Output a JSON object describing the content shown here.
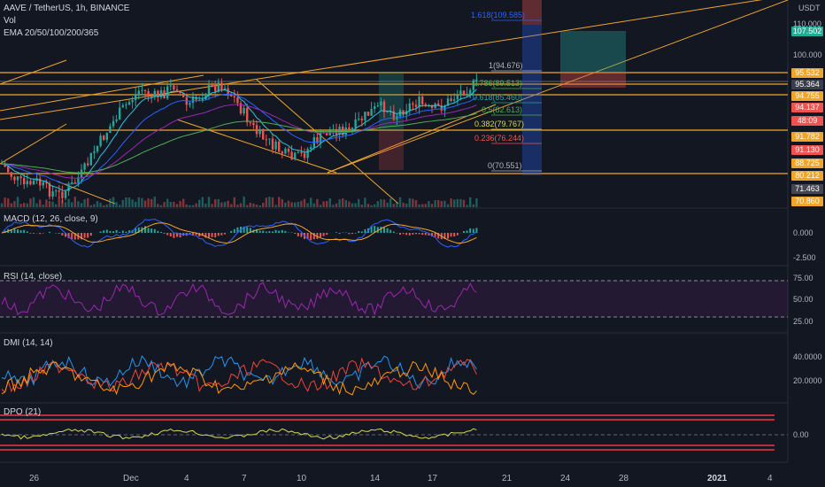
{
  "header": {
    "title": "AAVE / TetherUS, 1h, BINANCE",
    "vol": "Vol",
    "ema": "EMA 20/50/100/200/365",
    "currency": "USDT"
  },
  "price_axis_labels": [
    "110.000",
    "100.000"
  ],
  "price_tags": [
    {
      "text": "107.502",
      "color": "#22ab94"
    },
    {
      "text": "95.532",
      "color": "#f0a52a"
    },
    {
      "text": "95.364",
      "color": "#3a3e4a"
    },
    {
      "text": "94.755",
      "color": "#f0a52a"
    },
    {
      "text": "94.137",
      "color": "#ef5350"
    },
    {
      "text": "48:09",
      "color": "#ef5350"
    },
    {
      "text": "91.782",
      "color": "#f0a52a"
    },
    {
      "text": "91.130",
      "color": "#ef5350"
    },
    {
      "text": "88.725",
      "color": "#f0a52a"
    },
    {
      "text": "80.212",
      "color": "#f0a52a"
    },
    {
      "text": "71.463",
      "color": "#434651"
    },
    {
      "text": "70.860",
      "color": "#f0a52a"
    }
  ],
  "fib_labels": [
    {
      "text": "1.618(109.585)",
      "color": "#2962ff"
    },
    {
      "text": "1(94.676)",
      "color": "#b2b5be"
    },
    {
      "text": "0.786(89.513)",
      "color": "#4caf50"
    },
    {
      "text": "0.618(85.460)",
      "color": "#26a69a"
    },
    {
      "text": "0.5(82.613)",
      "color": "#4caf50"
    },
    {
      "text": "0.382(79.767)",
      "color": "#d6d84f"
    },
    {
      "text": "0.236(76.244)",
      "color": "#ef5350"
    },
    {
      "text": "0(70.551)",
      "color": "#b2b5be"
    }
  ],
  "indicators": {
    "macd": {
      "label": "MACD (12, 26, close, 9)",
      "axis": [
        "0.000",
        "-2.500"
      ]
    },
    "rsi": {
      "label": "RSI (14, close)",
      "axis": [
        "75.00",
        "50.00",
        "25.00"
      ]
    },
    "dmi": {
      "label": "DMI (14, 14)",
      "axis": [
        "40.0000",
        "20.0000"
      ]
    },
    "dpo": {
      "label": "DPO (21)",
      "axis": [
        "0.00"
      ]
    }
  },
  "x_axis": [
    {
      "label": "26"
    },
    {
      "label": "Dec"
    },
    {
      "label": "4"
    },
    {
      "label": "7"
    },
    {
      "label": "10"
    },
    {
      "label": "14"
    },
    {
      "label": "17"
    },
    {
      "label": "21"
    },
    {
      "label": "24"
    },
    {
      "label": "28"
    },
    {
      "label": "2021"
    },
    {
      "label": "4"
    }
  ],
  "colors": {
    "background": "#131722",
    "up": "#26a69a",
    "down": "#ef5350",
    "orange": "#f0a52a",
    "purple": "#9c27b0",
    "dpo": "#d6d84f"
  }
}
